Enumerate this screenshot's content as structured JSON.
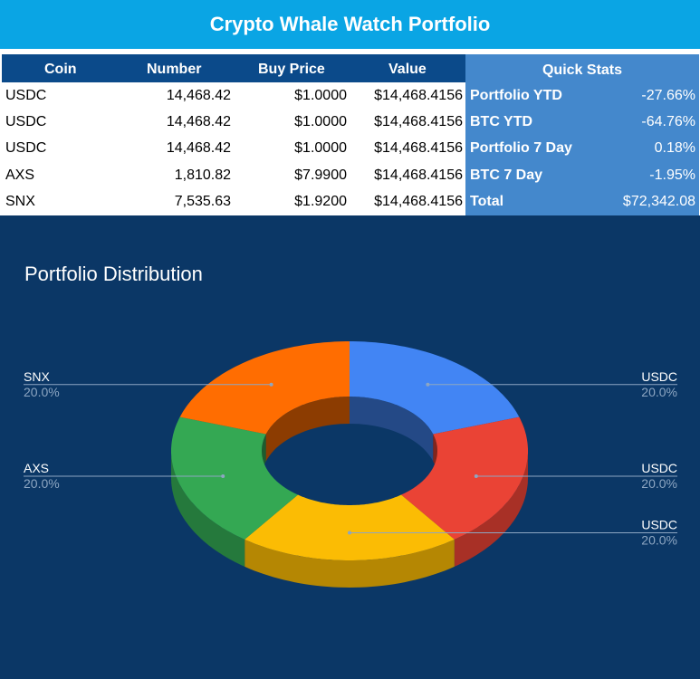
{
  "title": "Crypto Whale Watch Portfolio",
  "holdings": {
    "headers": {
      "coin": "Coin",
      "number": "Number",
      "buy_price": "Buy Price",
      "value": "Value"
    },
    "rows": [
      {
        "coin": "USDC",
        "number": "14,468.42",
        "buy_price": "$1.0000",
        "value": "$14,468.4156"
      },
      {
        "coin": "USDC",
        "number": "14,468.42",
        "buy_price": "$1.0000",
        "value": "$14,468.4156"
      },
      {
        "coin": "USDC",
        "number": "14,468.42",
        "buy_price": "$1.0000",
        "value": "$14,468.4156"
      },
      {
        "coin": "AXS",
        "number": "1,810.82",
        "buy_price": "$7.9900",
        "value": "$14,468.4156"
      },
      {
        "coin": "SNX",
        "number": "7,535.63",
        "buy_price": "$1.9200",
        "value": "$14,468.4156"
      }
    ]
  },
  "quick_stats": {
    "header": "Quick Stats",
    "rows": [
      {
        "label": "Portfolio YTD",
        "value": "-27.66%"
      },
      {
        "label": "BTC YTD",
        "value": "-64.76%"
      },
      {
        "label": "Portfolio 7 Day",
        "value": "0.18%"
      },
      {
        "label": "BTC 7 Day",
        "value": "-1.95%"
      },
      {
        "label": "Total",
        "value": "$72,342.08"
      }
    ]
  },
  "colors": {
    "title_bar": "#0aa5e4",
    "table_header": "#0b4a8a",
    "quick_stats": "#4488cc",
    "chart_background": "#0b3766"
  },
  "chart_data": {
    "type": "pie",
    "title": "Portfolio Distribution",
    "style": "3d-donut",
    "slices": [
      {
        "label": "USDC",
        "value": 20.0,
        "pct_label": "20.0%",
        "color": "#4285f4"
      },
      {
        "label": "USDC",
        "value": 20.0,
        "pct_label": "20.0%",
        "color": "#ea4335"
      },
      {
        "label": "USDC",
        "value": 20.0,
        "pct_label": "20.0%",
        "color": "#fbbc04"
      },
      {
        "label": "AXS",
        "value": 20.0,
        "pct_label": "20.0%",
        "color": "#34a853"
      },
      {
        "label": "SNX",
        "value": 20.0,
        "pct_label": "20.0%",
        "color": "#ff6d01"
      }
    ]
  }
}
